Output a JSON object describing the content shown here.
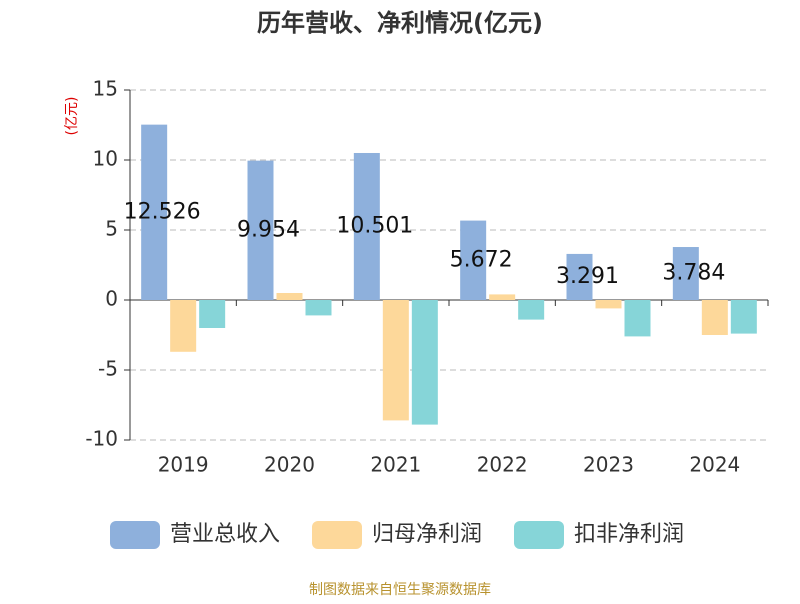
{
  "chart_data": {
    "type": "bar",
    "title": "历年营收、净利情况(亿元)",
    "y_label": "(亿元)",
    "source": "制图数据来自恒生聚源数据库",
    "categories": [
      "2019",
      "2020",
      "2021",
      "2022",
      "2023",
      "2024"
    ],
    "series": [
      {
        "name": "营业总收入",
        "color": "#8eb0dc",
        "values": [
          12.526,
          9.954,
          10.501,
          5.672,
          3.291,
          3.784
        ],
        "labels": true
      },
      {
        "name": "归母净利润",
        "color": "#fdd89a",
        "values": [
          -3.7,
          0.5,
          -8.6,
          0.4,
          -0.6,
          -2.5
        ]
      },
      {
        "name": "扣非净利润",
        "color": "#86d5d8",
        "values": [
          -2.0,
          -1.1,
          -8.9,
          -1.4,
          -2.6,
          -2.4
        ]
      }
    ],
    "ylim": [
      -10,
      15
    ],
    "yticks": [
      15,
      10,
      5,
      0,
      -5,
      -10
    ],
    "grid": true
  }
}
